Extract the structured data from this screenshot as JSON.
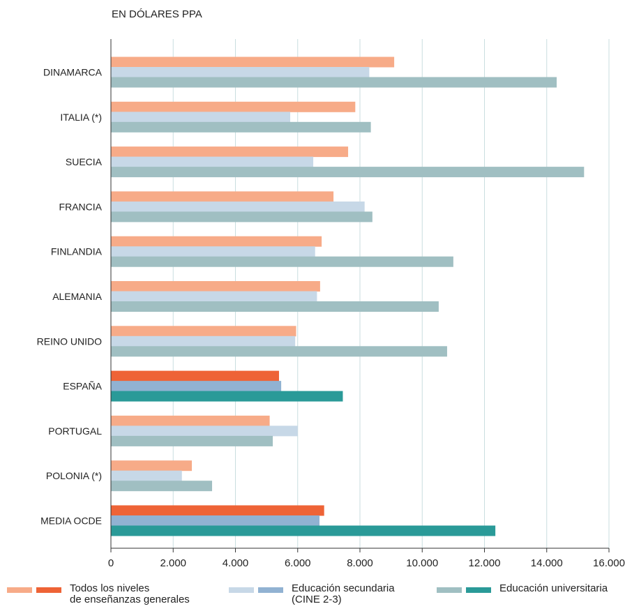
{
  "chart_data": {
    "type": "bar",
    "orientation": "horizontal",
    "title": "EN DÓLARES PPA",
    "categories": [
      "DINAMARCA",
      "ITALIA (*)",
      "SUECIA",
      "FRANCIA",
      "FINLANDIA",
      "ALEMANIA",
      "REINO UNIDO",
      "ESPAÑA",
      "PORTUGAL",
      "POLONIA (*)",
      "MEDIA OCDE"
    ],
    "highlighted_categories": [
      "ESPAÑA",
      "MEDIA OCDE"
    ],
    "series": [
      {
        "name": "Todos los niveles de enseñanzas generales",
        "label_lines": [
          "Todos los niveles",
          "de enseñanzas generales"
        ],
        "color": "#f7ab88",
        "highlight_color": "#ee6336",
        "values": [
          9100,
          7850,
          7620,
          7150,
          6770,
          6720,
          5950,
          5400,
          5100,
          2600,
          6850
        ]
      },
      {
        "name": "Educación secundaria (CINE 2-3)",
        "label_lines": [
          "Educación secundaria",
          "(CINE 2-3)"
        ],
        "color": "#c7d8e7",
        "highlight_color": "#91b2d2",
        "values": [
          8300,
          5760,
          6500,
          8150,
          6560,
          6620,
          5920,
          5470,
          6000,
          2280,
          6700
        ]
      },
      {
        "name": "Educación universitaria",
        "label_lines": [
          "Educación universitaria"
        ],
        "color": "#a0bfc2",
        "highlight_color": "#2a9a98",
        "values": [
          14320,
          8350,
          15200,
          8400,
          11000,
          10530,
          10800,
          7450,
          5200,
          3250,
          12350
        ]
      }
    ],
    "x_ticks": [
      "0",
      "2.000",
      "4.000",
      "6.000",
      "8.000",
      "10.000",
      "12.000",
      "14.000",
      "16.000"
    ],
    "xlim": [
      0,
      16000
    ],
    "grid": true
  }
}
